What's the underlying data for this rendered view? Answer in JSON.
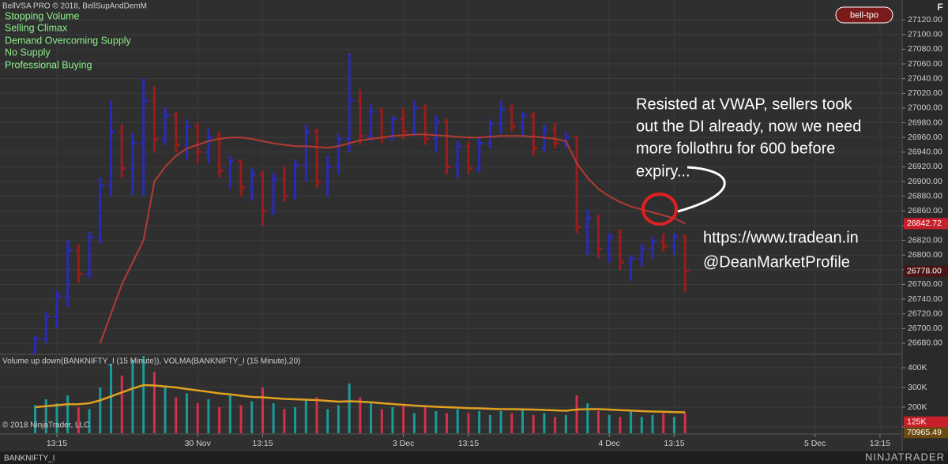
{
  "header": {
    "title": "BellVSA PRO © 2018, BellSupAndDemM",
    "signals": [
      "Stopping Volume",
      "Selling Climax",
      "Demand Overcoming Supply",
      "No Supply",
      "Professional Buying"
    ],
    "badge": "bell-tpo",
    "corner": "F"
  },
  "chart_data": [
    {
      "type": "ohlc",
      "categories": [
        null,
        null,
        "13:15",
        null,
        null,
        null,
        null,
        null,
        null,
        null,
        null,
        null,
        null,
        null,
        null,
        "30 Nov",
        null,
        null,
        null,
        null,
        null,
        "13:15",
        null,
        null,
        null,
        null,
        null,
        null,
        null,
        null,
        null,
        null,
        null,
        null,
        "3 Dec",
        null,
        null,
        null,
        null,
        null,
        "13:15",
        null,
        null,
        null,
        null,
        null,
        null,
        null,
        null,
        null,
        null,
        null,
        null,
        "4 Dec",
        null,
        null,
        null,
        null,
        null,
        "13:15",
        null,
        null,
        null,
        null,
        null,
        null,
        null,
        null,
        null,
        null,
        null,
        null,
        "5 Dec",
        null,
        null,
        null,
        null,
        null,
        "13:15",
        null
      ],
      "open": [
        26668,
        26686,
        26716,
        26744,
        26806,
        26774,
        26824,
        26895,
        26968,
        26918,
        26952,
        27010,
        26958,
        26990,
        26950,
        26975,
        26940,
        26960,
        26915,
        26928,
        26892,
        26910,
        26860,
        26904,
        26880,
        26922,
        26968,
        26900,
        26920,
        26958,
        27010,
        26962,
        26995,
        26960,
        26985,
        26968,
        27000,
        26958,
        26982,
        26920,
        26948,
        26918,
        26952,
        26978,
        26998,
        26975,
        26990,
        26945,
        26970,
        26952,
        26960,
        26838,
        26850,
        26808,
        26824,
        26790,
        26795,
        26808,
        26818,
        26812,
        26825,
        null,
        null,
        null,
        null,
        null,
        null,
        null,
        null,
        null,
        null,
        null,
        null,
        null,
        null,
        null,
        null,
        null,
        null,
        null
      ],
      "high": [
        26690,
        26722,
        26752,
        26820,
        26815,
        26832,
        26905,
        27010,
        26978,
        26966,
        27040,
        27030,
        27000,
        26995,
        26985,
        26980,
        26972,
        26968,
        26935,
        26930,
        26918,
        26915,
        26912,
        26920,
        26930,
        26978,
        26972,
        26935,
        26965,
        27075,
        27025,
        27005,
        27000,
        26990,
        27000,
        27010,
        27005,
        26990,
        26985,
        26955,
        26955,
        26960,
        26985,
        27010,
        27005,
        26995,
        26995,
        26978,
        26980,
        26968,
        26962,
        26862,
        26855,
        26830,
        26835,
        26800,
        26815,
        26825,
        26830,
        26830,
        26828,
        null,
        null,
        null,
        null,
        null,
        null,
        null,
        null,
        null,
        null,
        null,
        null,
        null,
        null,
        null,
        null,
        null,
        null,
        null
      ],
      "low": [
        26666,
        26680,
        26700,
        26730,
        26762,
        26768,
        26815,
        26880,
        26905,
        26882,
        26880,
        26940,
        26950,
        26940,
        26930,
        26925,
        26925,
        26905,
        26890,
        26880,
        26874,
        26840,
        26855,
        26872,
        26876,
        26900,
        26892,
        26880,
        26910,
        26940,
        26950,
        26955,
        26952,
        26955,
        26958,
        26962,
        26950,
        26940,
        26910,
        26905,
        26910,
        26912,
        26945,
        26965,
        26968,
        26960,
        26935,
        26940,
        26945,
        26945,
        26830,
        26800,
        26795,
        26790,
        26780,
        26765,
        26785,
        26795,
        26805,
        26800,
        26750,
        null,
        null,
        null,
        null,
        null,
        null,
        null,
        null,
        null,
        null,
        null,
        null,
        null,
        null,
        null,
        null,
        null,
        null,
        null
      ],
      "close": [
        26686,
        26716,
        26744,
        26806,
        26774,
        26824,
        26895,
        26968,
        26918,
        26952,
        27010,
        26958,
        26990,
        26950,
        26975,
        26940,
        26960,
        26915,
        26928,
        26892,
        26910,
        26860,
        26904,
        26880,
        26922,
        26968,
        26900,
        26920,
        26958,
        27010,
        26962,
        26995,
        26960,
        26985,
        26968,
        27000,
        26958,
        26982,
        26920,
        26948,
        26918,
        26952,
        26978,
        26998,
        26975,
        26990,
        26945,
        26970,
        26952,
        26960,
        26838,
        26850,
        26808,
        26824,
        26790,
        26795,
        26808,
        26818,
        26812,
        26825,
        26778,
        null,
        null,
        null,
        null,
        null,
        null,
        null,
        null,
        null,
        null,
        null,
        null,
        null,
        null,
        null,
        null,
        null,
        null,
        null
      ],
      "up_color": "#2a2ab8",
      "down_color": "#9a1c1c",
      "vwap": {
        "color": "#b43a34",
        "values": [
          null,
          null,
          null,
          null,
          null,
          null,
          26680,
          26720,
          26760,
          26790,
          26820,
          26900,
          26920,
          26935,
          26945,
          26950,
          26955,
          26958,
          26960,
          26960,
          26958,
          26955,
          26952,
          26950,
          26948,
          26948,
          26947,
          26946,
          26948,
          26952,
          26956,
          26958,
          26960,
          26962,
          26963,
          26964,
          26964,
          26963,
          26962,
          26961,
          26960,
          26960,
          26961,
          26962,
          26962,
          26962,
          26961,
          26960,
          26958,
          26955,
          26925,
          26905,
          26890,
          26880,
          26872,
          26866,
          26862,
          26858,
          26854,
          26850,
          26842.72,
          null,
          null,
          null,
          null,
          null,
          null,
          null,
          null,
          null,
          null,
          null,
          null,
          null,
          null,
          null,
          null,
          null,
          null,
          null
        ]
      },
      "ylim": [
        26666,
        27147
      ],
      "yticks": [
        {
          "value": 26680,
          "label": "26680.00"
        },
        {
          "value": 26700,
          "label": "26700.00"
        },
        {
          "value": 26720,
          "label": "26720.00"
        },
        {
          "value": 26740,
          "label": "26740.00"
        },
        {
          "value": 26760,
          "label": "26760.00"
        },
        {
          "value": 26780,
          "label": "26780.00"
        },
        {
          "value": 26800,
          "label": "26800.00"
        },
        {
          "value": 26820,
          "label": "26820.00"
        },
        {
          "value": 26840,
          "label": "26840.00"
        },
        {
          "value": 26860,
          "label": "26860.00"
        },
        {
          "value": 26880,
          "label": "26880.00"
        },
        {
          "value": 26900,
          "label": "26900.00"
        },
        {
          "value": 26920,
          "label": "26920.00"
        },
        {
          "value": 26940,
          "label": "26940.00"
        },
        {
          "value": 26960,
          "label": "26960.00"
        },
        {
          "value": 26980,
          "label": "26980.00"
        },
        {
          "value": 27000,
          "label": "27000.00"
        },
        {
          "value": 27020,
          "label": "27020.00"
        },
        {
          "value": 27040,
          "label": "27040.00"
        },
        {
          "value": 27060,
          "label": "27060.00"
        },
        {
          "value": 27080,
          "label": "27080.00"
        },
        {
          "value": 27100,
          "label": "27100.00"
        },
        {
          "value": 27120,
          "label": "27120.00"
        }
      ],
      "axis_markers": [
        {
          "value": 26842.72,
          "label": "26842.72",
          "color": "#c8202a"
        },
        {
          "value": 26778,
          "label": "26778.00",
          "color": "#4a1414"
        }
      ],
      "grid": true
    },
    {
      "type": "bar",
      "title": "Volume up down(BANKNIFTY_I (15 Minute)), VOLMA(BANKNIFTY_I (15 Minute),20)",
      "values": [
        210000,
        240000,
        220000,
        260000,
        200000,
        190000,
        300000,
        420000,
        360000,
        440000,
        460000,
        380000,
        300000,
        250000,
        270000,
        220000,
        240000,
        200000,
        260000,
        210000,
        230000,
        300000,
        220000,
        190000,
        200000,
        240000,
        250000,
        190000,
        210000,
        320000,
        250000,
        220000,
        190000,
        200000,
        210000,
        170000,
        200000,
        180000,
        170000,
        190000,
        170000,
        180000,
        160000,
        180000,
        170000,
        190000,
        160000,
        170000,
        150000,
        160000,
        260000,
        220000,
        180000,
        160000,
        150000,
        180000,
        150000,
        160000,
        170000,
        150000,
        170000,
        null,
        null,
        null,
        null,
        null,
        null,
        null,
        null,
        null,
        null,
        null,
        null,
        null,
        null,
        null,
        null,
        null,
        null,
        null
      ],
      "up_color": "#1b9a9a",
      "down_color": "#d4304c",
      "volma": {
        "color": "#e0a020",
        "values": [
          200000,
          205000,
          210000,
          215000,
          215000,
          220000,
          235000,
          255000,
          275000,
          295000,
          312000,
          310000,
          305000,
          300000,
          292000,
          285000,
          278000,
          270000,
          265000,
          258000,
          252000,
          250000,
          246000,
          242000,
          240000,
          238000,
          236000,
          232000,
          228000,
          230000,
          228000,
          225000,
          220000,
          216000,
          212000,
          208000,
          205000,
          202000,
          200000,
          198000,
          195000,
          194000,
          192000,
          190000,
          190000,
          189000,
          188000,
          186000,
          184000,
          182000,
          188000,
          190000,
          190000,
          188000,
          185000,
          183000,
          180000,
          178000,
          177000,
          175000,
          174000,
          null,
          null,
          null,
          null,
          null,
          null,
          null,
          null,
          null,
          null,
          null,
          null,
          null,
          null,
          null,
          null,
          null,
          null,
          null
        ]
      },
      "ylim": [
        68000,
        464000
      ],
      "yticks": [
        {
          "value": 100000,
          "label": "100K"
        },
        {
          "value": 200000,
          "label": "200K"
        },
        {
          "value": 300000,
          "label": "300K"
        },
        {
          "value": 400000,
          "label": "400K"
        }
      ],
      "axis_markers": [
        {
          "value": 125000,
          "label": "125K",
          "color": "#c8202a"
        },
        {
          "value": 70965.49,
          "label": "70965.49",
          "color": "#6a4a10"
        }
      ],
      "grid": true
    }
  ],
  "annotation": {
    "lines": [
      "Resisted at VWAP, sellers took",
      "out the DI already, now we need",
      "more follothru for 600 before",
      "expiry..."
    ],
    "links": [
      "https://www.tradean.in",
      "@DeanMarketProfile"
    ]
  },
  "footer": {
    "copyright": "© 2018 NinjaTrader, LLC",
    "symbol": "BANKNIFTY_I",
    "brand": "NINJATRADER"
  }
}
